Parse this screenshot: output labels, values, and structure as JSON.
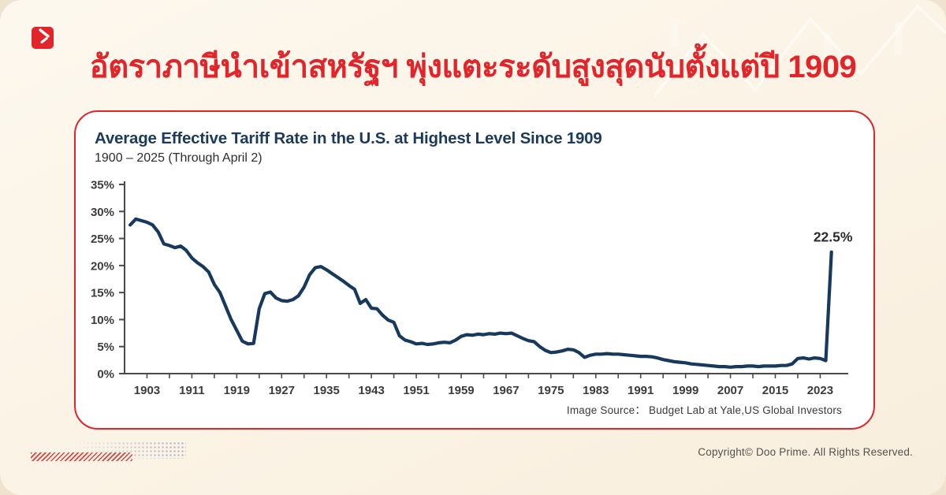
{
  "header": {
    "headline": "อัตราภาษีนำเข้าสหรัฐฯ พุ่งแตะระดับสูงสุดนับตั้งแต่ปี 1909"
  },
  "brand": {
    "name": "Doo Prime",
    "accent_color": "#e2242b"
  },
  "card": {
    "title": "Average Effective Tariff Rate in the U.S. at Highest Level Since 1909",
    "subtitle": "1900 – 2025 (Through April 2)",
    "source": "Image Source： Budget Lab at Yale,US Global Investors"
  },
  "footer": {
    "copyright": "Copyright© Doo Prime. All Rights Reserved."
  },
  "chart_data": {
    "type": "line",
    "title": "Average Effective Tariff Rate in the U.S. at Highest Level Since 1909",
    "subtitle": "1900 – 2025 (Through April 2)",
    "xlabel": "",
    "ylabel": "",
    "ylim": [
      0,
      35
    ],
    "grid": false,
    "legend": "none",
    "line_color": "#16395d",
    "axis_color": "#4a4a4a",
    "label_color": "#3c3c3c",
    "y_tick_labels": [
      "0%",
      "5%",
      "10%",
      "15%",
      "20%",
      "25%",
      "30%",
      "35%"
    ],
    "x_tick_labels": [
      "1903",
      "1911",
      "1919",
      "1927",
      "1935",
      "1943",
      "1951",
      "1959",
      "1967",
      "1975",
      "1983",
      "1991",
      "1999",
      "2007",
      "2015",
      "2023"
    ],
    "x_start": 1900,
    "x_end": 2025,
    "values": [
      27.5,
      28.6,
      28.3,
      28.0,
      27.5,
      26.2,
      24.0,
      23.7,
      23.3,
      23.6,
      22.8,
      21.4,
      20.5,
      19.8,
      18.8,
      16.5,
      15.0,
      12.5,
      10.0,
      8.0,
      6.0,
      5.5,
      5.6,
      12.0,
      14.8,
      15.1,
      14.0,
      13.5,
      13.4,
      13.7,
      14.4,
      16.0,
      18.3,
      19.6,
      19.8,
      19.2,
      18.5,
      17.8,
      17.1,
      16.3,
      15.6,
      13.0,
      13.7,
      12.1,
      12.0,
      10.8,
      9.9,
      9.5,
      7.0,
      6.2,
      5.9,
      5.5,
      5.6,
      5.4,
      5.5,
      5.7,
      5.8,
      5.7,
      6.2,
      6.9,
      7.2,
      7.1,
      7.3,
      7.2,
      7.4,
      7.3,
      7.5,
      7.4,
      7.5,
      7.0,
      6.5,
      6.1,
      5.9,
      5.0,
      4.3,
      3.9,
      4.0,
      4.2,
      4.5,
      4.4,
      3.9,
      3.0,
      3.4,
      3.6,
      3.6,
      3.7,
      3.6,
      3.6,
      3.5,
      3.4,
      3.3,
      3.2,
      3.2,
      3.1,
      2.9,
      2.6,
      2.4,
      2.2,
      2.1,
      2.0,
      1.8,
      1.7,
      1.6,
      1.5,
      1.4,
      1.3,
      1.3,
      1.2,
      1.3,
      1.3,
      1.4,
      1.4,
      1.3,
      1.4,
      1.4,
      1.4,
      1.5,
      1.5,
      1.8,
      2.8,
      2.9,
      2.7,
      2.9,
      2.8,
      2.4,
      22.5
    ],
    "annotation": {
      "year": 2025,
      "value": 22.5,
      "label": "22.5%"
    }
  }
}
